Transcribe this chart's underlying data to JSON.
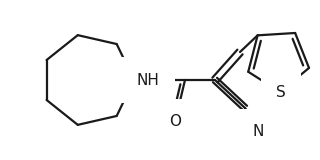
{
  "bg_color": "#ffffff",
  "line_color": "#1a1a1a",
  "line_width": 1.6,
  "figsize": [
    3.2,
    1.6
  ],
  "dpi": 100,
  "xlim": [
    0,
    320
  ],
  "ylim": [
    0,
    160
  ]
}
